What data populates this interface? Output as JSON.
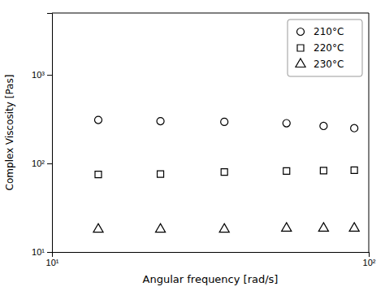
{
  "chart_data": {
    "type": "scatter",
    "xlabel": "Angular frequency [rad/s]",
    "ylabel": "Complex Viscosity [Pas]",
    "x": [
      14,
      22,
      35,
      55,
      72,
      90
    ],
    "series": [
      {
        "name": "210°C",
        "marker": "circle",
        "color": "black",
        "values": [
          310,
          300,
          295,
          285,
          265,
          250
        ]
      },
      {
        "name": "220°C",
        "marker": "square",
        "color": "black",
        "values": [
          75,
          76,
          80,
          82,
          83,
          84
        ]
      },
      {
        "name": "230°C",
        "marker": "triangle",
        "color": "black",
        "values": [
          18,
          18,
          18,
          18.5,
          18.5,
          18.5
        ]
      }
    ],
    "log": true,
    "xlim": [
      10,
      100
    ],
    "ylim": [
      10,
      5000
    ],
    "xticks": [
      {
        "value": 10,
        "label": "10¹"
      },
      {
        "value": 100,
        "label": "10²"
      }
    ],
    "yticks": [
      {
        "value": 10,
        "label": "10¹"
      },
      {
        "value": 100,
        "label": "10²"
      },
      {
        "value": 1000,
        "label": "10³"
      }
    ],
    "grid": false,
    "legend": "upper right"
  }
}
